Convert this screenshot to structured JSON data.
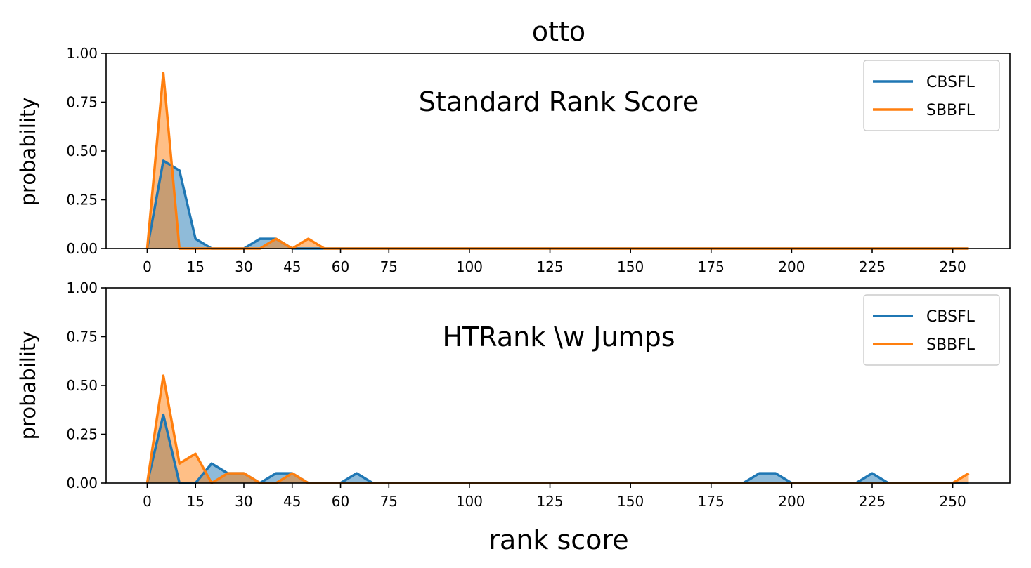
{
  "figure": {
    "title": "otto",
    "xlabel": "rank score"
  },
  "colors": {
    "CBSFL": "#1f77b4",
    "SBBFL": "#ff7f0e"
  },
  "chart_data": [
    {
      "type": "area",
      "title": "Standard Rank Score",
      "xlabel": "",
      "ylabel": "probability",
      "xlim": [
        -12.75,
        267.75
      ],
      "ylim": [
        0,
        1
      ],
      "xticks": [
        0,
        15,
        30,
        45,
        60,
        75,
        100,
        125,
        150,
        175,
        200,
        225,
        250
      ],
      "yticks": [
        "0.00",
        "0.25",
        "0.50",
        "0.75",
        "1.00"
      ],
      "legend": "top-right",
      "series": [
        {
          "name": "CBSFL",
          "color": "#1f77b4",
          "x": [
            0,
            5,
            10,
            15,
            20,
            25,
            30,
            35,
            40,
            45,
            50,
            55,
            255
          ],
          "y": [
            0,
            0.45,
            0.4,
            0.05,
            0,
            0,
            0,
            0.05,
            0.05,
            0,
            0,
            0,
            0
          ]
        },
        {
          "name": "SBBFL",
          "color": "#ff7f0e",
          "x": [
            0,
            5,
            10,
            15,
            20,
            25,
            30,
            35,
            40,
            45,
            50,
            55,
            255
          ],
          "y": [
            0,
            0.9,
            0,
            0,
            0,
            0,
            0,
            0,
            0.05,
            0,
            0.05,
            0,
            0
          ]
        }
      ]
    },
    {
      "type": "area",
      "title": "HTRank \\w Jumps",
      "xlabel": "rank score",
      "ylabel": "probability",
      "xlim": [
        -12.75,
        267.75
      ],
      "ylim": [
        0,
        1
      ],
      "xticks": [
        0,
        15,
        30,
        45,
        60,
        75,
        100,
        125,
        150,
        175,
        200,
        225,
        250
      ],
      "yticks": [
        "0.00",
        "0.25",
        "0.50",
        "0.75",
        "1.00"
      ],
      "legend": "top-right",
      "series": [
        {
          "name": "CBSFL",
          "color": "#1f77b4",
          "x": [
            0,
            5,
            10,
            15,
            20,
            25,
            30,
            35,
            40,
            45,
            50,
            55,
            60,
            65,
            70,
            185,
            190,
            195,
            200,
            220,
            225,
            230,
            255
          ],
          "y": [
            0,
            0.35,
            0,
            0,
            0.1,
            0.05,
            0.05,
            0,
            0.05,
            0.05,
            0,
            0,
            0,
            0.05,
            0,
            0,
            0.05,
            0.05,
            0,
            0,
            0.05,
            0,
            0
          ]
        },
        {
          "name": "SBBFL",
          "color": "#ff7f0e",
          "x": [
            0,
            5,
            10,
            15,
            20,
            25,
            30,
            35,
            40,
            45,
            50,
            250,
            255
          ],
          "y": [
            0,
            0.55,
            0.1,
            0.15,
            0,
            0.05,
            0.05,
            0,
            0,
            0.05,
            0,
            0,
            0.05
          ]
        }
      ]
    }
  ]
}
